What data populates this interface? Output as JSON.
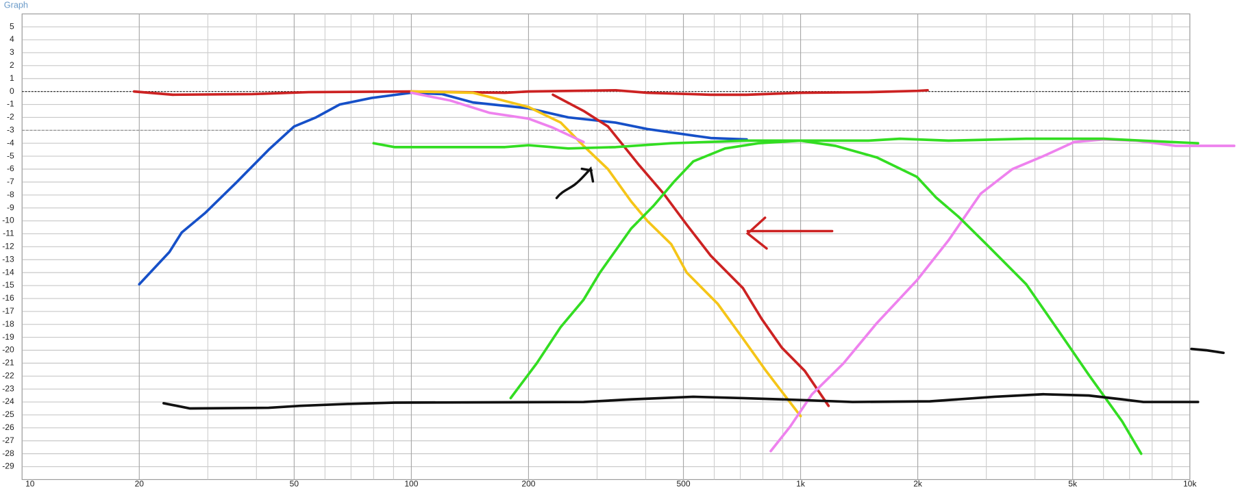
{
  "chart_data": {
    "type": "line",
    "title": "Graph",
    "xscale": "log",
    "xlim": [
      10,
      10000
    ],
    "ylim": [
      -30,
      6
    ],
    "xticks": [
      {
        "value": 10,
        "label": "10"
      },
      {
        "value": 20,
        "label": "20"
      },
      {
        "value": 50,
        "label": "50"
      },
      {
        "value": 100,
        "label": "100"
      },
      {
        "value": 200,
        "label": "200"
      },
      {
        "value": 500,
        "label": "500"
      },
      {
        "value": 1000,
        "label": "1k"
      },
      {
        "value": 2000,
        "label": "2k"
      },
      {
        "value": 5000,
        "label": "5k"
      },
      {
        "value": 10000,
        "label": "10k"
      }
    ],
    "xminor": [
      30,
      40,
      60,
      70,
      80,
      90,
      300,
      400,
      600,
      700,
      800,
      900,
      3000,
      4000,
      6000,
      7000,
      8000,
      9000
    ],
    "yticks": [
      5,
      4,
      3,
      2,
      1,
      0,
      -1,
      -2,
      -3,
      -4,
      -5,
      -6,
      -7,
      -8,
      -9,
      -10,
      -11,
      -12,
      -13,
      -14,
      -15,
      -16,
      -17,
      -18,
      -19,
      -20,
      -21,
      -22,
      -23,
      -24,
      -25,
      -26,
      -27,
      -28,
      -29
    ],
    "hlines": [
      0,
      -3
    ],
    "grid": true,
    "series": [
      {
        "color": "#1650c8",
        "x": [
          20,
          23.9,
          25.7,
          29.5,
          35.6,
          43,
          50,
          56.9,
          65.5,
          79,
          100,
          120,
          144,
          200,
          253,
          335,
          404,
          500,
          588,
          727
        ],
        "values": [
          -14.9,
          -12.4,
          -10.9,
          -9.4,
          -7,
          -4.5,
          -2.7,
          -2,
          -1,
          -0.5,
          -0.1,
          -0.2,
          -0.85,
          -1.3,
          -2,
          -2.4,
          -2.9,
          -3.3,
          -3.6,
          -3.7
        ]
      },
      {
        "color": "#cc2222",
        "x": [
          19.4,
          24.4,
          39,
          54.5,
          100,
          174,
          200,
          335,
          404,
          588,
          727,
          1000,
          1493,
          2000,
          2120
        ],
        "values": [
          0,
          -0.25,
          -0.2,
          -0.05,
          0,
          -0.1,
          0,
          0.1,
          -0.1,
          -0.25,
          -0.25,
          -0.1,
          -0.05,
          0.05,
          0.1
        ]
      },
      {
        "color": "#cc2222",
        "x": [
          231,
          277,
          320,
          351,
          385,
          445,
          510,
          588,
          711,
          795,
          895,
          1025,
          1180
        ],
        "values": [
          -0.25,
          -1.5,
          -2.7,
          -4.2,
          -5.7,
          -7.9,
          -10.3,
          -12.7,
          -15.2,
          -17.6,
          -19.8,
          -21.6,
          -24.3
        ]
      },
      {
        "color": "#f5c518",
        "x": [
          100,
          144,
          200,
          242,
          277,
          320,
          367,
          404,
          465,
          510,
          612,
          711,
          815,
          1000
        ],
        "values": [
          0,
          -0.1,
          -1.2,
          -2.4,
          -4.2,
          -6,
          -8.5,
          -10,
          -11.8,
          -14,
          -16.4,
          -19.1,
          -21.6,
          -25.1
        ]
      },
      {
        "color": "#ee82ee",
        "x": [
          100,
          126,
          159,
          200,
          231,
          277
        ],
        "values": [
          -0.1,
          -0.7,
          -1.65,
          -2.1,
          -2.8,
          -3.9
        ]
      },
      {
        "color": "#ee82ee",
        "x": [
          838,
          940,
          1070,
          1290,
          1570,
          1990,
          2400,
          2900,
          3500,
          4200,
          5050,
          6000,
          7300,
          9200,
          11700,
          13000
        ],
        "values": [
          -27.8,
          -25.9,
          -23.4,
          -21,
          -17.9,
          -14.6,
          -11.5,
          -7.9,
          -6,
          -5,
          -3.9,
          -3.7,
          -3.8,
          -4.2,
          -4.2,
          -4.2
        ]
      },
      {
        "color": "#33dd22",
        "x": [
          80,
          90.5,
          174,
          200,
          253,
          335,
          465,
          727,
          1493,
          1800,
          2400,
          3800,
          6000,
          10500
        ],
        "values": [
          -4,
          -4.3,
          -4.3,
          -4.15,
          -4.4,
          -4.3,
          -4,
          -3.8,
          -3.8,
          -3.65,
          -3.8,
          -3.65,
          -3.65,
          -4
        ]
      },
      {
        "color": "#33dd22",
        "x": [
          180,
          210,
          242,
          277,
          305,
          367,
          420,
          472,
          530,
          640,
          780,
          1000
        ],
        "values": [
          -23.7,
          -21,
          -18.2,
          -16.1,
          -14,
          -10.6,
          -8.8,
          -7,
          -5.4,
          -4.4,
          -4,
          -3.8
        ]
      },
      {
        "color": "#33dd22",
        "x": [
          1000,
          1230,
          1570,
          1990,
          2230,
          2550,
          3000,
          3800,
          4600,
          5500,
          6700,
          7500
        ],
        "values": [
          -3.8,
          -4.2,
          -5.1,
          -6.6,
          -8.2,
          -9.7,
          -11.8,
          -14.9,
          -18.5,
          -21.9,
          -25.5,
          -28
        ]
      },
      {
        "color": "#111111",
        "x": [
          23.1,
          27,
          43,
          51.8,
          68.5,
          90.5,
          277,
          367,
          530,
          711,
          1000,
          1360,
          2150,
          3150,
          4200,
          5500,
          6700,
          7600,
          9200,
          10500
        ],
        "values": [
          -24.1,
          -24.5,
          -24.45,
          -24.3,
          -24.15,
          -24.05,
          -24,
          -23.8,
          -23.6,
          -23.7,
          -23.85,
          -24,
          -23.95,
          -23.6,
          -23.4,
          -23.5,
          -23.8,
          -24,
          -24,
          -24
        ]
      },
      {
        "color": "#111111",
        "x": [
          10100,
          11000,
          12200
        ],
        "values": [
          -19.9,
          -20,
          -20.2
        ]
      }
    ]
  }
}
